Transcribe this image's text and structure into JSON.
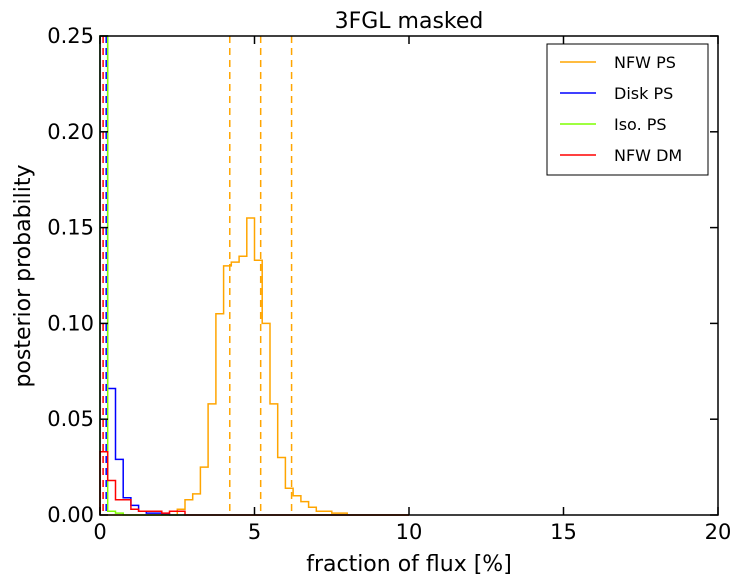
{
  "chart_data": {
    "type": "line",
    "title": "3FGL masked",
    "xlabel": "fraction of flux [%]",
    "ylabel": "posterior probability",
    "xlim": [
      0,
      20
    ],
    "ylim": [
      0,
      0.25
    ],
    "x_ticks": [
      0,
      5,
      10,
      15,
      20
    ],
    "x_tick_labels": [
      "0",
      "5",
      "10",
      "15",
      "20"
    ],
    "y_ticks": [
      0,
      0.05,
      0.1,
      0.15,
      0.2,
      0.25
    ],
    "y_tick_labels": [
      "0.00",
      "0.05",
      "0.10",
      "0.15",
      "0.20",
      "0.25"
    ],
    "grid": false,
    "legend_position": "top-right",
    "bin_width": 0.25,
    "series": [
      {
        "name": "NFW PS",
        "color": "#ffa500",
        "style": "step",
        "edges_start": 0,
        "values": [
          0,
          0,
          0,
          0,
          0,
          0,
          0,
          0,
          0,
          0,
          0.003,
          0.008,
          0.011,
          0.025,
          0.058,
          0.105,
          0.13,
          0.132,
          0.135,
          0.155,
          0.133,
          0.1,
          0.058,
          0.03,
          0.014,
          0.01,
          0.007,
          0.004,
          0.002,
          0.002,
          0.001,
          0.001,
          0,
          0,
          0,
          0,
          0,
          0,
          0,
          0
        ],
        "vlines": [
          4.2,
          5.2,
          6.2
        ]
      },
      {
        "name": "Disk PS",
        "color": "#0000ff",
        "style": "step",
        "edges_start": 0,
        "values": [
          0.25,
          0.066,
          0.029,
          0.009,
          0.005,
          0.002,
          0.001,
          0.001,
          0.0005,
          0,
          0,
          0,
          0,
          0,
          0,
          0,
          0,
          0,
          0,
          0,
          0,
          0,
          0,
          0,
          0,
          0,
          0,
          0,
          0,
          0,
          0,
          0,
          0,
          0,
          0,
          0,
          0,
          0,
          0,
          0
        ],
        "vlines": [
          0.2
        ]
      },
      {
        "name": "Iso. PS",
        "color": "#7fff00",
        "style": "step",
        "edges_start": 0,
        "values": [
          0.25,
          0.002,
          0.001,
          0,
          0,
          0,
          0,
          0,
          0,
          0,
          0,
          0,
          0,
          0,
          0,
          0,
          0,
          0,
          0,
          0,
          0,
          0,
          0,
          0,
          0,
          0,
          0,
          0,
          0,
          0,
          0,
          0,
          0,
          0,
          0,
          0,
          0,
          0,
          0,
          0
        ],
        "vlines": []
      },
      {
        "name": "NFW DM",
        "color": "#ff0000",
        "style": "step",
        "edges_start": 0,
        "values": [
          0.033,
          0.018,
          0.008,
          0.008,
          0.003,
          0.002,
          0.002,
          0.002,
          0.001,
          0.002,
          0.002,
          0,
          0,
          0,
          0,
          0,
          0,
          0,
          0,
          0,
          0,
          0,
          0,
          0,
          0,
          0,
          0,
          0,
          0,
          0,
          0,
          0,
          0,
          0,
          0,
          0,
          0,
          0,
          0,
          0
        ],
        "vlines": [
          0.1
        ]
      }
    ]
  }
}
